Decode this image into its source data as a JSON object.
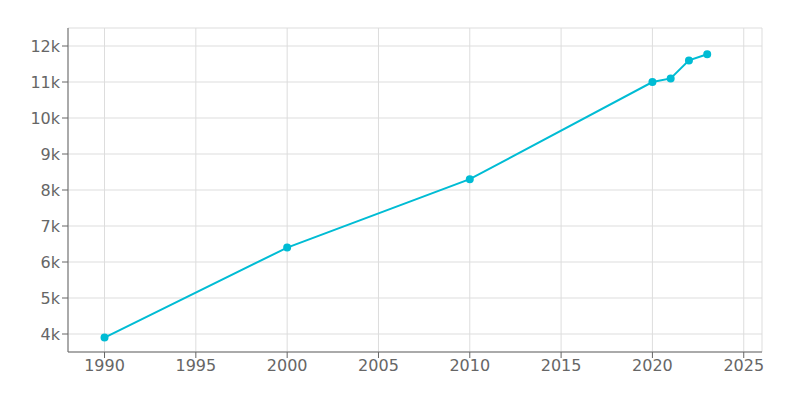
{
  "chart_data": {
    "type": "line",
    "x": [
      1990,
      2000,
      2010,
      2020,
      2021,
      2022,
      2023
    ],
    "values": [
      3900,
      6400,
      8300,
      11000,
      11100,
      11600,
      11770
    ],
    "color": "#00BCD4",
    "marker": "circle",
    "xlim": [
      1988,
      2026
    ],
    "ylim": [
      3500,
      12500
    ],
    "xticks": [
      1990,
      1995,
      2000,
      2005,
      2010,
      2015,
      2020,
      2025
    ],
    "yticks": [
      {
        "value": 4000,
        "label": "4k"
      },
      {
        "value": 5000,
        "label": "5k"
      },
      {
        "value": 6000,
        "label": "6k"
      },
      {
        "value": 7000,
        "label": "7k"
      },
      {
        "value": 8000,
        "label": "8k"
      },
      {
        "value": 9000,
        "label": "9k"
      },
      {
        "value": 10000,
        "label": "10k"
      },
      {
        "value": 11000,
        "label": "11k"
      },
      {
        "value": 12000,
        "label": "12k"
      }
    ],
    "grid": true
  }
}
